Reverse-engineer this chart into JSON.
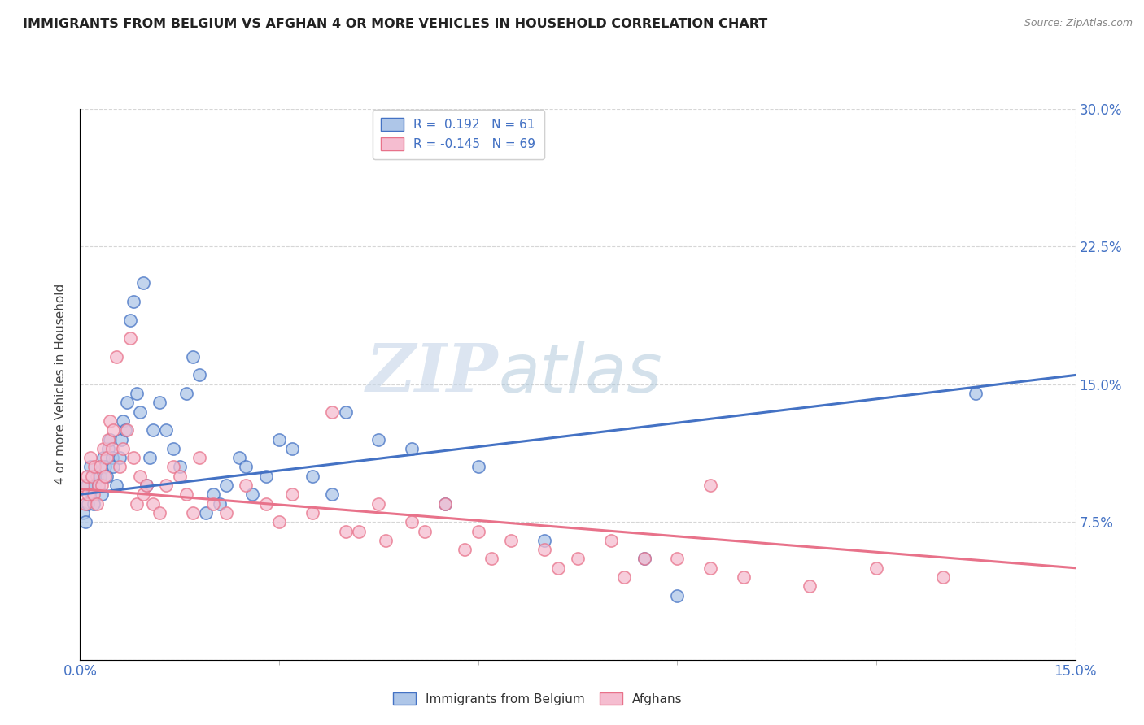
{
  "title": "IMMIGRANTS FROM BELGIUM VS AFGHAN 4 OR MORE VEHICLES IN HOUSEHOLD CORRELATION CHART",
  "source": "Source: ZipAtlas.com",
  "ylabel_label": "4 or more Vehicles in Household",
  "xmin": 0.0,
  "xmax": 15.0,
  "ymin": 0.0,
  "ymax": 30.0,
  "blue_R": 0.192,
  "blue_N": 61,
  "pink_R": -0.145,
  "pink_N": 69,
  "blue_color": "#aec6e8",
  "pink_color": "#f5bdd0",
  "blue_edge_color": "#4472c4",
  "pink_edge_color": "#e8728a",
  "blue_line_color": "#4472c4",
  "pink_line_color": "#e8728a",
  "legend1": "Immigrants from Belgium",
  "legend2": "Afghans",
  "watermark_zip": "ZIP",
  "watermark_atlas": "atlas",
  "grid_color": "#cccccc",
  "blue_trend_x0": 0.0,
  "blue_trend_y0": 9.0,
  "blue_trend_x1": 15.0,
  "blue_trend_y1": 15.5,
  "pink_trend_x0": 0.0,
  "pink_trend_y0": 9.3,
  "pink_trend_x1": 15.0,
  "pink_trend_y1": 5.0,
  "blue_scatter_x": [
    0.05,
    0.08,
    0.1,
    0.12,
    0.15,
    0.18,
    0.2,
    0.22,
    0.25,
    0.28,
    0.3,
    0.32,
    0.35,
    0.38,
    0.4,
    0.42,
    0.45,
    0.48,
    0.5,
    0.55,
    0.6,
    0.62,
    0.65,
    0.68,
    0.7,
    0.75,
    0.8,
    0.85,
    0.9,
    0.95,
    1.0,
    1.05,
    1.1,
    1.2,
    1.3,
    1.4,
    1.5,
    1.6,
    1.7,
    1.8,
    1.9,
    2.0,
    2.1,
    2.2,
    2.4,
    2.5,
    2.6,
    2.8,
    3.0,
    3.2,
    3.5,
    3.8,
    4.0,
    4.5,
    5.0,
    5.5,
    6.0,
    7.0,
    8.5,
    9.0,
    13.5
  ],
  "blue_scatter_y": [
    8.0,
    7.5,
    9.5,
    8.5,
    10.5,
    9.0,
    8.5,
    9.5,
    10.0,
    9.5,
    10.0,
    9.0,
    11.0,
    10.5,
    10.0,
    11.5,
    12.0,
    11.0,
    10.5,
    9.5,
    11.0,
    12.0,
    13.0,
    12.5,
    14.0,
    18.5,
    19.5,
    14.5,
    13.5,
    20.5,
    9.5,
    11.0,
    12.5,
    14.0,
    12.5,
    11.5,
    10.5,
    14.5,
    16.5,
    15.5,
    8.0,
    9.0,
    8.5,
    9.5,
    11.0,
    10.5,
    9.0,
    10.0,
    12.0,
    11.5,
    10.0,
    9.0,
    13.5,
    12.0,
    11.5,
    8.5,
    10.5,
    6.5,
    5.5,
    3.5,
    14.5
  ],
  "pink_scatter_x": [
    0.05,
    0.08,
    0.1,
    0.12,
    0.15,
    0.18,
    0.2,
    0.22,
    0.25,
    0.28,
    0.3,
    0.32,
    0.35,
    0.38,
    0.4,
    0.42,
    0.45,
    0.48,
    0.5,
    0.55,
    0.6,
    0.65,
    0.7,
    0.75,
    0.8,
    0.85,
    0.9,
    0.95,
    1.0,
    1.1,
    1.2,
    1.3,
    1.4,
    1.5,
    1.6,
    1.7,
    1.8,
    2.0,
    2.2,
    2.5,
    2.8,
    3.0,
    3.2,
    3.5,
    4.0,
    4.5,
    5.0,
    5.5,
    6.0,
    6.5,
    7.0,
    7.5,
    8.0,
    8.5,
    9.0,
    9.5,
    10.0,
    11.0,
    12.0,
    13.0,
    3.8,
    4.2,
    4.6,
    5.2,
    5.8,
    6.2,
    7.2,
    8.2,
    9.5
  ],
  "pink_scatter_y": [
    9.5,
    8.5,
    10.0,
    9.0,
    11.0,
    10.0,
    9.0,
    10.5,
    8.5,
    9.5,
    10.5,
    9.5,
    11.5,
    10.0,
    11.0,
    12.0,
    13.0,
    11.5,
    12.5,
    16.5,
    10.5,
    11.5,
    12.5,
    17.5,
    11.0,
    8.5,
    10.0,
    9.0,
    9.5,
    8.5,
    8.0,
    9.5,
    10.5,
    10.0,
    9.0,
    8.0,
    11.0,
    8.5,
    8.0,
    9.5,
    8.5,
    7.5,
    9.0,
    8.0,
    7.0,
    8.5,
    7.5,
    8.5,
    7.0,
    6.5,
    6.0,
    5.5,
    6.5,
    5.5,
    5.5,
    5.0,
    4.5,
    4.0,
    5.0,
    4.5,
    13.5,
    7.0,
    6.5,
    7.0,
    6.0,
    5.5,
    5.0,
    4.5,
    9.5
  ]
}
